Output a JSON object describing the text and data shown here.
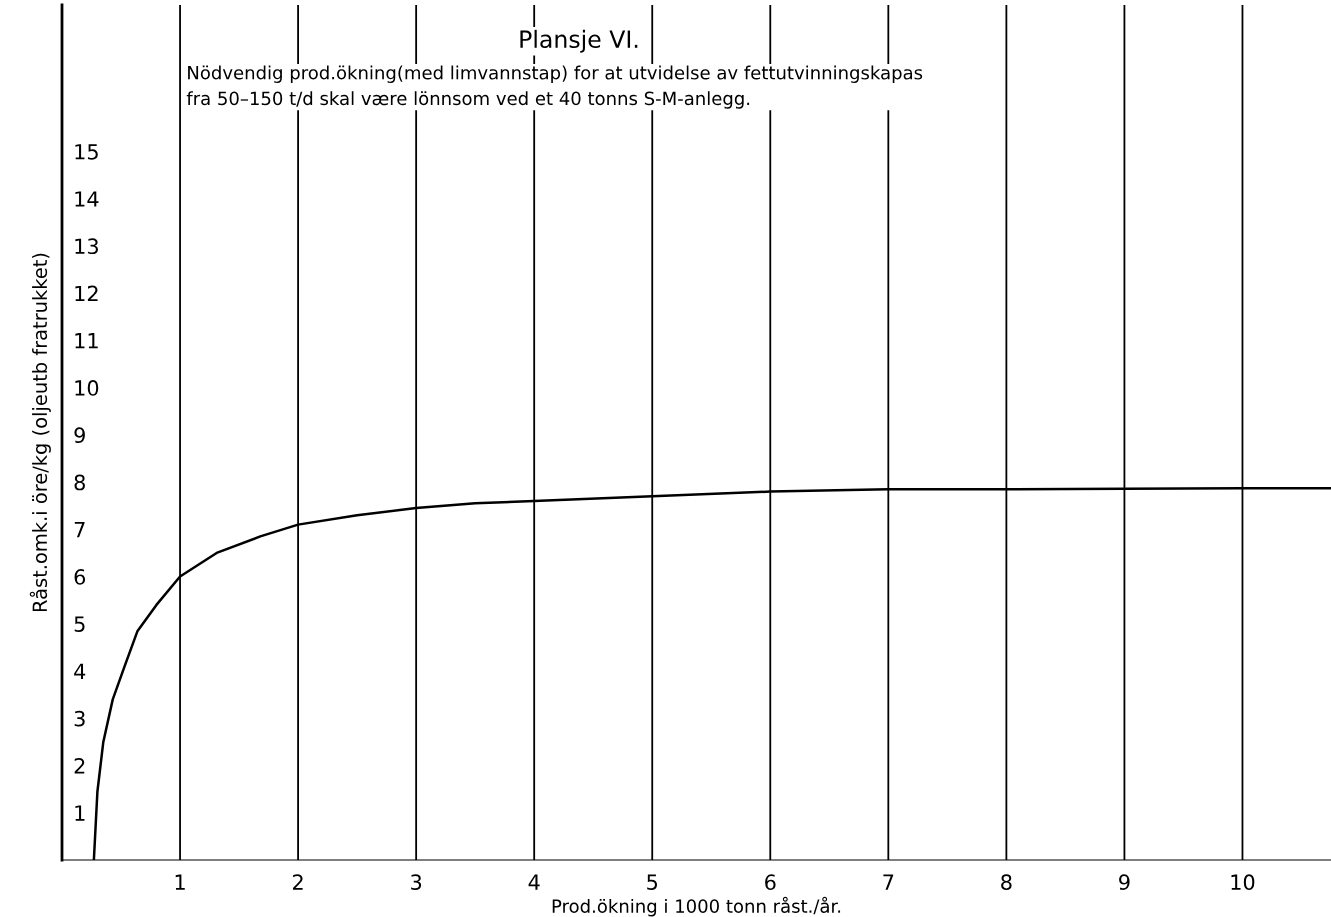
{
  "chart_data": {
    "type": "line",
    "title": "Plansje VI.",
    "subtitle": "Nödvendig prod.ökning(med limvannstap) for at utvidelse av fettutvinningskapas\nfra 50–150 t/d skal være lönnsom ved et 40 tonns S-M-anlegg.",
    "xlabel": "Prod.ökning i 1000 tonn råst./år.",
    "ylabel": "Råst.omk.i öre/kg (oljeutb fratrukket)",
    "series": [
      {
        "color": "#000000",
        "x": [
          0.27,
          0.3,
          0.35,
          0.43,
          0.53,
          0.64,
          0.8,
          1.0,
          1.31,
          1.68,
          2.0,
          2.5,
          3.0,
          3.5,
          4.0,
          5.0,
          6.0,
          7.0,
          8.0,
          9.0,
          10.0,
          10.75
        ],
        "values": [
          0,
          1.45,
          2.5,
          3.4,
          4.1,
          4.85,
          5.4,
          6.0,
          6.5,
          6.85,
          7.1,
          7.3,
          7.45,
          7.55,
          7.6,
          7.7,
          7.8,
          7.85,
          7.85,
          7.86,
          7.87,
          7.87
        ]
      }
    ],
    "xlim": [
      0,
      10.75
    ],
    "xticks": [
      1,
      2,
      3,
      4,
      5,
      6,
      7,
      8,
      9,
      10
    ],
    "ylim": [
      0,
      18.1
    ],
    "yticks": [
      1,
      2,
      3,
      4,
      5,
      6,
      7,
      8,
      9,
      10,
      11,
      12,
      13,
      14,
      15
    ],
    "grid": "x",
    "marker": "none",
    "line_style": "solid"
  }
}
